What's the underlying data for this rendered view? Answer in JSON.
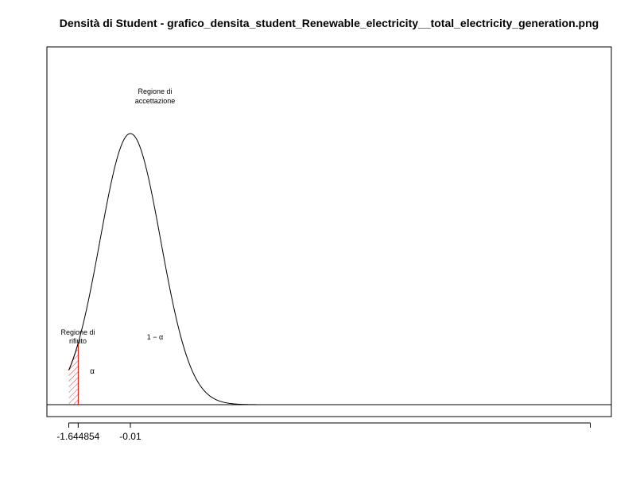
{
  "chart_data": {
    "type": "line",
    "title": "Densità di Student - grafico_densita_student_Renewable_electricity__total_electricity_generation.png",
    "xlabel": "",
    "ylabel": "",
    "distribution": "student-t",
    "curve_peak_x": -0.01,
    "curve_sd": 0.95,
    "xlim": [
      -2.5,
      14.9
    ],
    "x_ticks": [
      {
        "value": -1.644854,
        "label": "-1.644854"
      },
      {
        "value": -0.01,
        "label": "-0.01"
      },
      {
        "value": 14.4,
        "label": ""
      }
    ],
    "critical_value": -1.644854,
    "rejection_region": {
      "from": -1.94,
      "to": -1.644854,
      "color": "#dd0000",
      "hatched": true
    },
    "annotations": {
      "acceptance": [
        "Regione di",
        "accettazione"
      ],
      "rejection": [
        "Regione di",
        "rifiuto"
      ],
      "alpha": "α",
      "one_minus_alpha": "1 − α"
    },
    "grid": false,
    "legend": "none"
  }
}
